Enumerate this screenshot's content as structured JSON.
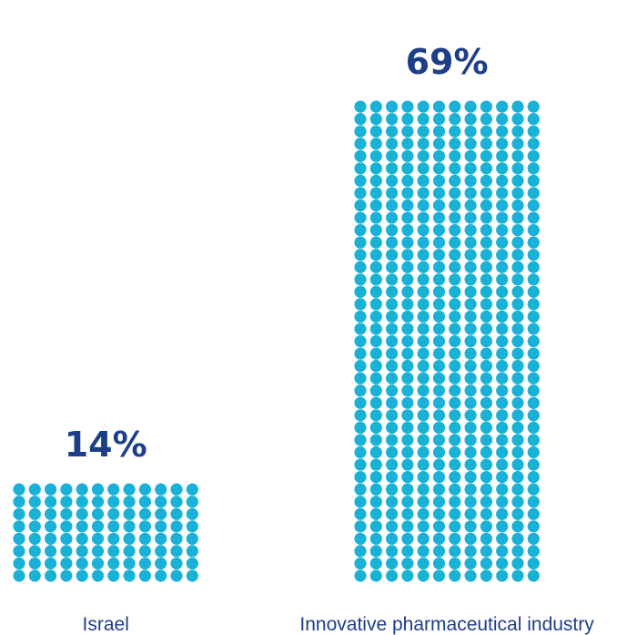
{
  "chart_data": {
    "type": "bar",
    "style": "dot-matrix",
    "title": "",
    "xlabel": "",
    "ylabel": "",
    "categories": [
      "Israel",
      "Innovative pharmaceutical industry"
    ],
    "values": [
      14,
      69
    ],
    "value_labels": [
      "14%",
      "69%"
    ],
    "unit": "%",
    "ylim": [
      0,
      69
    ],
    "grid": false,
    "legend": "none"
  },
  "colors": {
    "dot": "#1ab1d6",
    "value_label": "#1d3f87",
    "category_label": "#1d3f87",
    "background": "#ffffff"
  }
}
